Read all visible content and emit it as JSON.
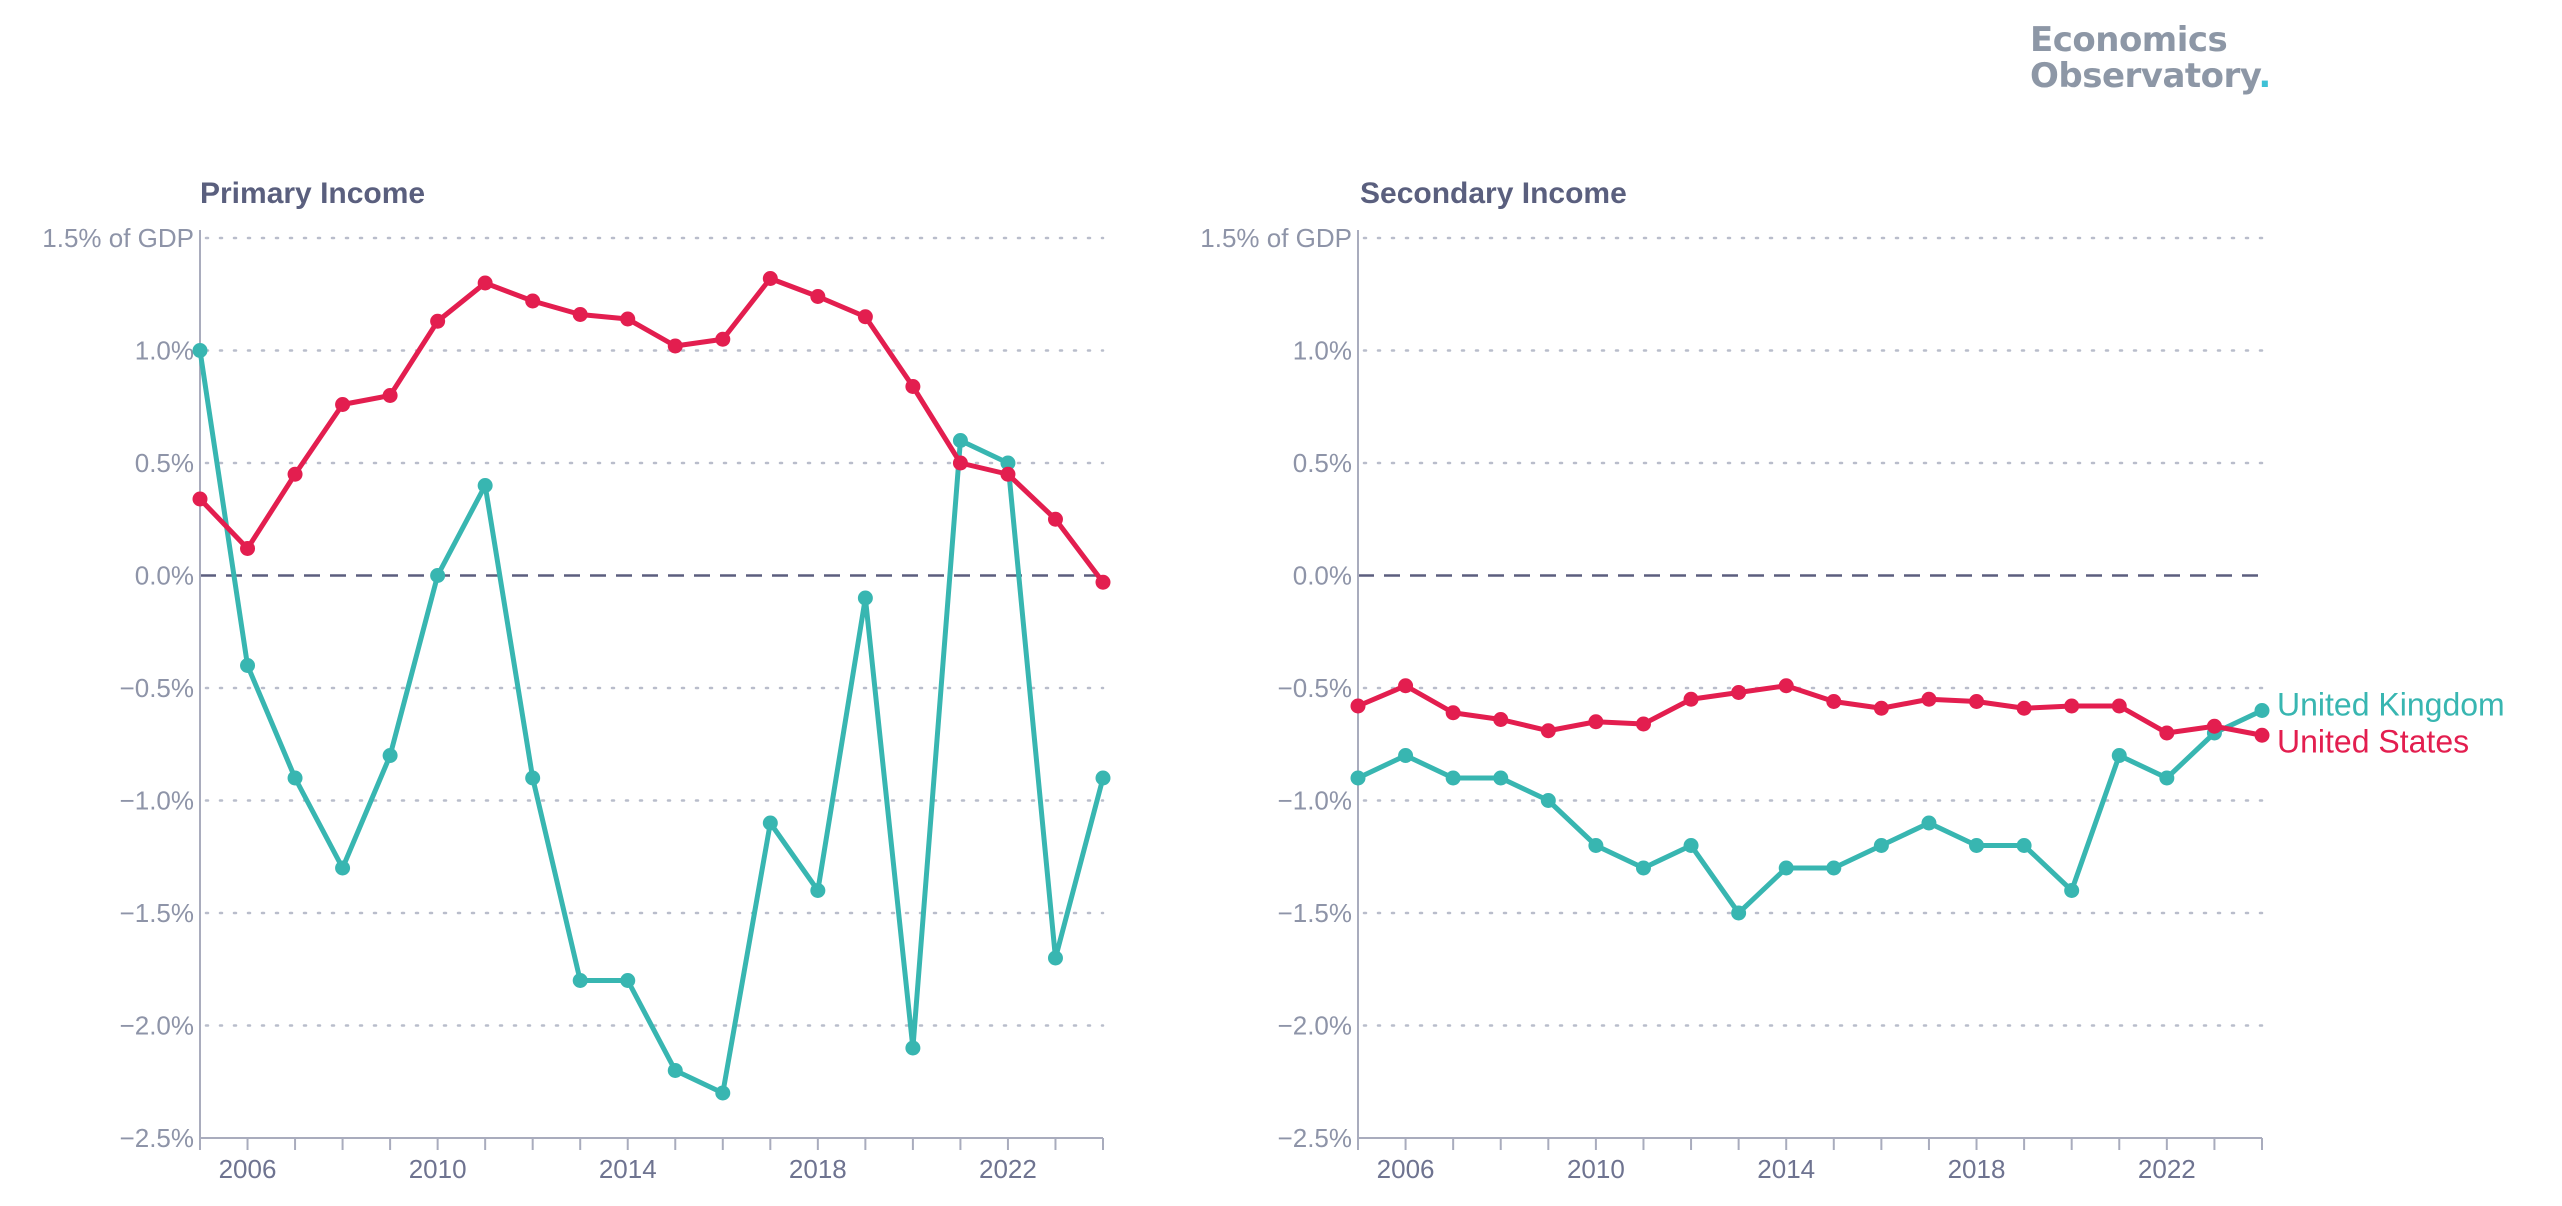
{
  "logo": {
    "line1": "Economics",
    "line2": "Observatory",
    "dot": "."
  },
  "colors": {
    "uk": "#38b6b1",
    "us": "#e31e4f"
  },
  "chart_data": [
    {
      "type": "line",
      "title": "Primary Income",
      "ylim": [
        -2.5,
        1.5
      ],
      "yticks": [
        1.5,
        1.0,
        0.5,
        0.0,
        -0.5,
        -1.0,
        -1.5,
        -2.0,
        -2.5
      ],
      "ytick_labels": [
        "1.5% of GDP",
        "1.0%",
        "0.5%",
        "0.0%",
        "−0.5%",
        "−1.0%",
        "−1.5%",
        "−2.0%",
        "−2.5%"
      ],
      "xlim": [
        2005,
        2024
      ],
      "xticks": [
        2006,
        2010,
        2014,
        2018,
        2022
      ],
      "xtick_labels": [
        "2006",
        "2010",
        "2014",
        "2018",
        "2022"
      ],
      "grid": true,
      "x": [
        2005,
        2006,
        2007,
        2008,
        2009,
        2010,
        2011,
        2012,
        2013,
        2014,
        2015,
        2016,
        2017,
        2018,
        2019,
        2020,
        2021,
        2022,
        2023,
        2024
      ],
      "series": [
        {
          "name": "United Kingdom",
          "key": "uk",
          "values": [
            1.0,
            -0.4,
            -0.9,
            -1.3,
            -0.8,
            0.0,
            0.4,
            -0.9,
            -1.8,
            -1.8,
            -2.2,
            -2.3,
            -1.1,
            -1.4,
            -0.1,
            -2.1,
            0.6,
            0.5,
            -1.7,
            -0.9
          ]
        },
        {
          "name": "United States",
          "key": "us",
          "values": [
            0.34,
            0.12,
            0.45,
            0.76,
            0.8,
            1.13,
            1.3,
            1.22,
            1.16,
            1.14,
            1.02,
            1.05,
            1.32,
            1.24,
            1.15,
            0.84,
            0.5,
            0.45,
            0.25,
            -0.03
          ]
        }
      ]
    },
    {
      "type": "line",
      "title": "Secondary Income",
      "ylim": [
        -2.5,
        1.5
      ],
      "yticks": [
        1.5,
        1.0,
        0.5,
        0.0,
        -0.5,
        -1.0,
        -1.5,
        -2.0,
        -2.5
      ],
      "ytick_labels": [
        "1.5% of GDP",
        "1.0%",
        "0.5%",
        "0.0%",
        "−0.5%",
        "−1.0%",
        "−1.5%",
        "−2.0%",
        "−2.5%"
      ],
      "xlim": [
        2005,
        2024
      ],
      "xticks": [
        2006,
        2010,
        2014,
        2018,
        2022
      ],
      "xtick_labels": [
        "2006",
        "2010",
        "2014",
        "2018",
        "2022"
      ],
      "grid": true,
      "x": [
        2005,
        2006,
        2007,
        2008,
        2009,
        2010,
        2011,
        2012,
        2013,
        2014,
        2015,
        2016,
        2017,
        2018,
        2019,
        2020,
        2021,
        2022,
        2023,
        2024
      ],
      "series": [
        {
          "name": "United Kingdom",
          "key": "uk",
          "label": "United Kingdom",
          "values": [
            -0.9,
            -0.8,
            -0.9,
            -0.9,
            -1.0,
            -1.2,
            -1.3,
            -1.2,
            -1.5,
            -1.3,
            -1.3,
            -1.2,
            -1.1,
            -1.2,
            -1.2,
            -1.4,
            -0.8,
            -0.9,
            -0.7,
            -0.6
          ]
        },
        {
          "name": "United States",
          "key": "us",
          "label": "United States",
          "values": [
            -0.58,
            -0.49,
            -0.61,
            -0.64,
            -0.69,
            -0.65,
            -0.66,
            -0.55,
            -0.52,
            -0.49,
            -0.56,
            -0.59,
            -0.55,
            -0.56,
            -0.59,
            -0.58,
            -0.58,
            -0.7,
            -0.67,
            -0.71
          ]
        }
      ]
    }
  ]
}
